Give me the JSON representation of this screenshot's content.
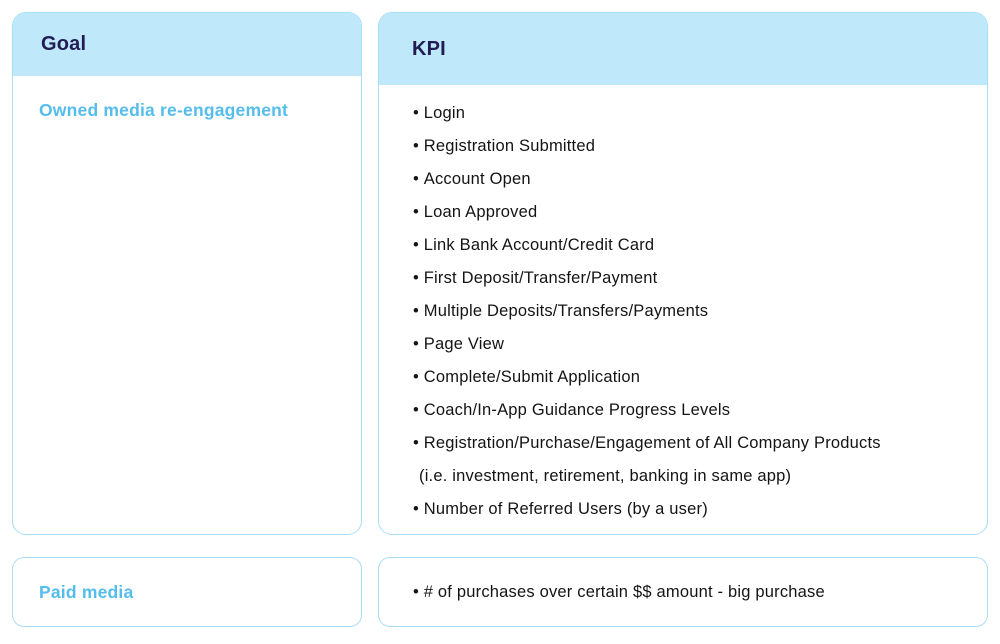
{
  "colors": {
    "page_bg": "#ffffff",
    "header_bg": "#bfe8fa",
    "card_border": "#a9def7",
    "heading_text": "#211d54",
    "accent_text": "#55bdec",
    "body_text": "#141414"
  },
  "columns": {
    "goal": {
      "header": "Goal"
    },
    "kpi": {
      "header": "KPI"
    }
  },
  "rows": [
    {
      "goal": "Owned media re-engagement",
      "kpis": [
        {
          "text": "Login"
        },
        {
          "text": "Registration Submitted"
        },
        {
          "text": "Account Open"
        },
        {
          "text": "Loan Approved"
        },
        {
          "text": "Link Bank Account/Credit Card"
        },
        {
          "text": "First Deposit/Transfer/Payment"
        },
        {
          "text": "Multiple Deposits/Transfers/Payments"
        },
        {
          "text": "Page View"
        },
        {
          "text": "Complete/Submit Application"
        },
        {
          "text": "Coach/In-App Guidance Progress Levels"
        },
        {
          "text": "Registration/Purchase/Engagement of All Company Products",
          "note": "(i.e. investment, retirement, banking in same app)"
        },
        {
          "text": "Number of Referred Users (by a user)"
        }
      ]
    },
    {
      "goal": "Paid media",
      "kpis": [
        {
          "text": "# of purchases over certain $$ amount - big purchase"
        }
      ]
    }
  ]
}
